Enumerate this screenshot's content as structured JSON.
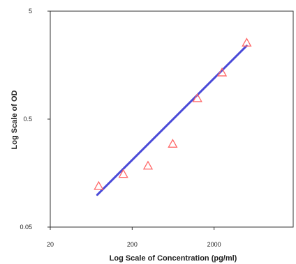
{
  "chart_data": {
    "type": "scatter",
    "title": "",
    "xlabel": "Log Scale of Concentration (pg/ml)",
    "ylabel": "Log Scale of OD",
    "xscale": "log",
    "yscale": "log",
    "xlim": [
      20,
      20000
    ],
    "ylim": [
      0.05,
      5
    ],
    "x_ticks": [
      "20",
      "200",
      "2000"
    ],
    "y_ticks": [
      "5",
      "0.5",
      "0.05"
    ],
    "grid": false,
    "legend": "none",
    "series": [
      {
        "kind": "markers",
        "marker": "triangle",
        "color": "#ff6666",
        "x": [
          78,
          156,
          312,
          625,
          1250,
          2500,
          5000
        ],
        "y": [
          0.12,
          0.155,
          0.185,
          0.295,
          0.78,
          1.35,
          2.55
        ]
      },
      {
        "kind": "fit-line",
        "color": "#4a4ad8",
        "x": [
          75,
          5000
        ],
        "y": [
          0.0995,
          2.39
        ]
      }
    ]
  }
}
